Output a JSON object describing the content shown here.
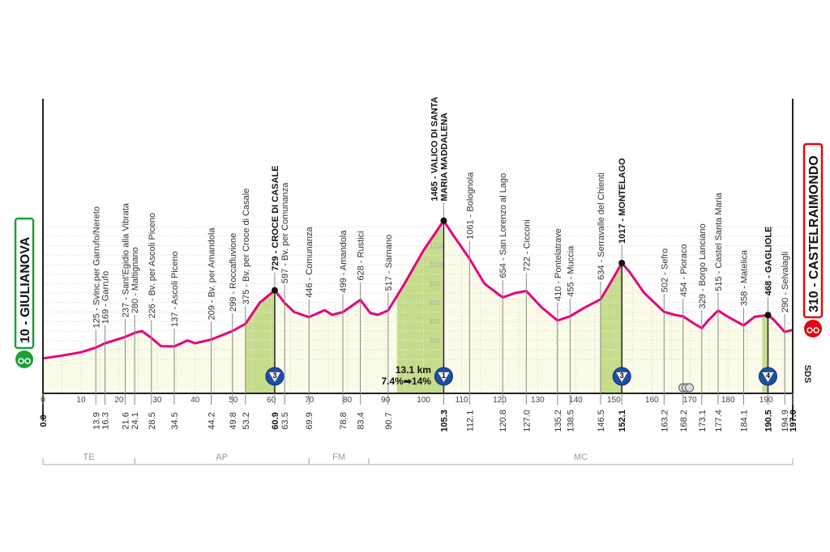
{
  "chart_data": {
    "type": "area",
    "xlim": [
      0,
      197
    ],
    "x_ticks": [
      0,
      10,
      20,
      30,
      40,
      50,
      60,
      70,
      80,
      90,
      100,
      110,
      120,
      130,
      140,
      150,
      160,
      170,
      180,
      190
    ],
    "y_ticks": [
      200,
      400,
      600,
      800,
      1000,
      1200
    ],
    "profile_color": "#e5007e",
    "fill_color": "#fbfbe9",
    "climb_color": "#c5dc8a",
    "start": {
      "label": "10 - GIULIANOVA",
      "color": "#1e9e3a"
    },
    "finish": {
      "label": "310 - CASTELRAIMONDO",
      "color": "#e30613"
    },
    "waypoints": [
      {
        "km": 0.0,
        "elev": 10,
        "name": "",
        "km_label": "0.0",
        "bold": true
      },
      {
        "km": 13.9,
        "elev": 125,
        "name": "125 - Svinc.per Garrufo/Nereto",
        "km_label": "13.9"
      },
      {
        "km": 16.3,
        "elev": 169,
        "name": "169 - Garrufo",
        "km_label": "16.3"
      },
      {
        "km": 21.6,
        "elev": 237,
        "name": "237 - Sant'Egidio alla Vibrata",
        "km_label": "21.6"
      },
      {
        "km": 24.1,
        "elev": 280,
        "name": "280 - Maltignano",
        "km_label": "24.1"
      },
      {
        "km": 28.5,
        "elev": 226,
        "name": "226 - Bv. per Ascoli Piceno",
        "km_label": "28.5"
      },
      {
        "km": 34.5,
        "elev": 137,
        "name": "137 - Ascoli Piceno",
        "km_label": "34.5"
      },
      {
        "km": 44.2,
        "elev": 209,
        "name": "209 - Bv. per Amandola",
        "km_label": "44.2"
      },
      {
        "km": 49.8,
        "elev": 299,
        "name": "299 - Roccafluvione",
        "km_label": "49.8"
      },
      {
        "km": 53.2,
        "elev": 375,
        "name": "375 - Bv. per Croce di Casale",
        "km_label": "53.2"
      },
      {
        "km": 60.9,
        "elev": 729,
        "name": "729 - CROCE DI CASALE",
        "km_label": "60.9",
        "bold": true,
        "kom": "3"
      },
      {
        "km": 63.5,
        "elev": 597,
        "name": "597 - Bv. per Comunanza",
        "km_label": "63.5"
      },
      {
        "km": 69.9,
        "elev": 446,
        "name": "446 - Comunanza",
        "km_label": "69.9"
      },
      {
        "km": 78.8,
        "elev": 499,
        "name": "499 - Amandola",
        "km_label": "78.8"
      },
      {
        "km": 83.4,
        "elev": 628,
        "name": "628 - Rustici",
        "km_label": "83.4"
      },
      {
        "km": 90.7,
        "elev": 517,
        "name": "517 - Sarnano",
        "km_label": "90.7"
      },
      {
        "km": 105.3,
        "elev": 1465,
        "name": "1465 - VALICO DI SANTA|MARIA MADDALENA",
        "km_label": "105.3",
        "bold": true,
        "kom": "1"
      },
      {
        "km": 112.1,
        "elev": 1061,
        "name": "1061 - Bolognola",
        "km_label": "112.1"
      },
      {
        "km": 120.8,
        "elev": 654,
        "name": "654 - San Lorenzo al Lago",
        "km_label": "120.8"
      },
      {
        "km": 127.0,
        "elev": 722,
        "name": "722 - Cicconi",
        "km_label": "127.0"
      },
      {
        "km": 135.2,
        "elev": 410,
        "name": "410 - Pontelatrave",
        "km_label": "135.2"
      },
      {
        "km": 138.5,
        "elev": 455,
        "name": "455 - Muccia",
        "km_label": "138.5"
      },
      {
        "km": 146.5,
        "elev": 634,
        "name": "634 - Serravalle del Chienti",
        "km_label": "146.5"
      },
      {
        "km": 152.1,
        "elev": 1017,
        "name": "1017 - MONTELAGO",
        "km_label": "152.1",
        "bold": true,
        "kom": "3"
      },
      {
        "km": 163.2,
        "elev": 502,
        "name": "502 - Sefro",
        "km_label": "163.2"
      },
      {
        "km": 168.2,
        "elev": 454,
        "name": "454 - Pioraco",
        "km_label": "168.2"
      },
      {
        "km": 173.1,
        "elev": 329,
        "name": "329 - Borgo Lanciano",
        "km_label": "173.1"
      },
      {
        "km": 177.4,
        "elev": 515,
        "name": "515 - Castel Santa Maria",
        "km_label": "177.4"
      },
      {
        "km": 184.1,
        "elev": 358,
        "name": "358 - Matelica",
        "km_label": "184.1"
      },
      {
        "km": 190.5,
        "elev": 468,
        "name": "468 - GAGLIOLE",
        "km_label": "190.5",
        "bold": true,
        "kom": "4"
      },
      {
        "km": 194.9,
        "elev": 290,
        "name": "290 - Selvalagli",
        "km_label": "194.9"
      },
      {
        "km": 197.0,
        "elev": 310,
        "name": "",
        "km_label": "197.0",
        "bold": true
      }
    ],
    "profile_extra": [
      [
        5,
        40
      ],
      [
        10,
        75
      ],
      [
        26,
        300
      ],
      [
        31,
        140
      ],
      [
        38,
        200
      ],
      [
        40,
        170
      ],
      [
        57,
        600
      ],
      [
        66,
        500
      ],
      [
        74,
        520
      ],
      [
        76,
        470
      ],
      [
        86,
        490
      ],
      [
        88,
        470
      ],
      [
        95,
        800
      ],
      [
        100,
        1150
      ],
      [
        108,
        1300
      ],
      [
        116,
        800
      ],
      [
        124,
        700
      ],
      [
        131,
        550
      ],
      [
        142,
        540
      ],
      [
        149,
        800
      ],
      [
        154,
        930
      ],
      [
        158,
        700
      ],
      [
        166,
        470
      ],
      [
        171,
        380
      ],
      [
        175,
        420
      ],
      [
        180,
        450
      ],
      [
        187,
        450
      ],
      [
        192,
        420
      ]
    ],
    "climbs": [
      [
        53.2,
        60.9
      ],
      [
        93,
        105.3
      ],
      [
        146.5,
        152.1
      ],
      [
        189,
        190.5
      ]
    ],
    "climb_note": {
      "distance": "13.1 km",
      "gradient": "7.4%➡14%"
    },
    "sprint_km": 169,
    "sds_label": "SDS",
    "regions": [
      {
        "code": "TE",
        "from": 0,
        "to": 24.1
      },
      {
        "code": "AP",
        "from": 24.1,
        "to": 69.9
      },
      {
        "code": "FM",
        "from": 69.9,
        "to": 85.6
      },
      {
        "code": "MC",
        "from": 85.6,
        "to": 197
      }
    ]
  }
}
